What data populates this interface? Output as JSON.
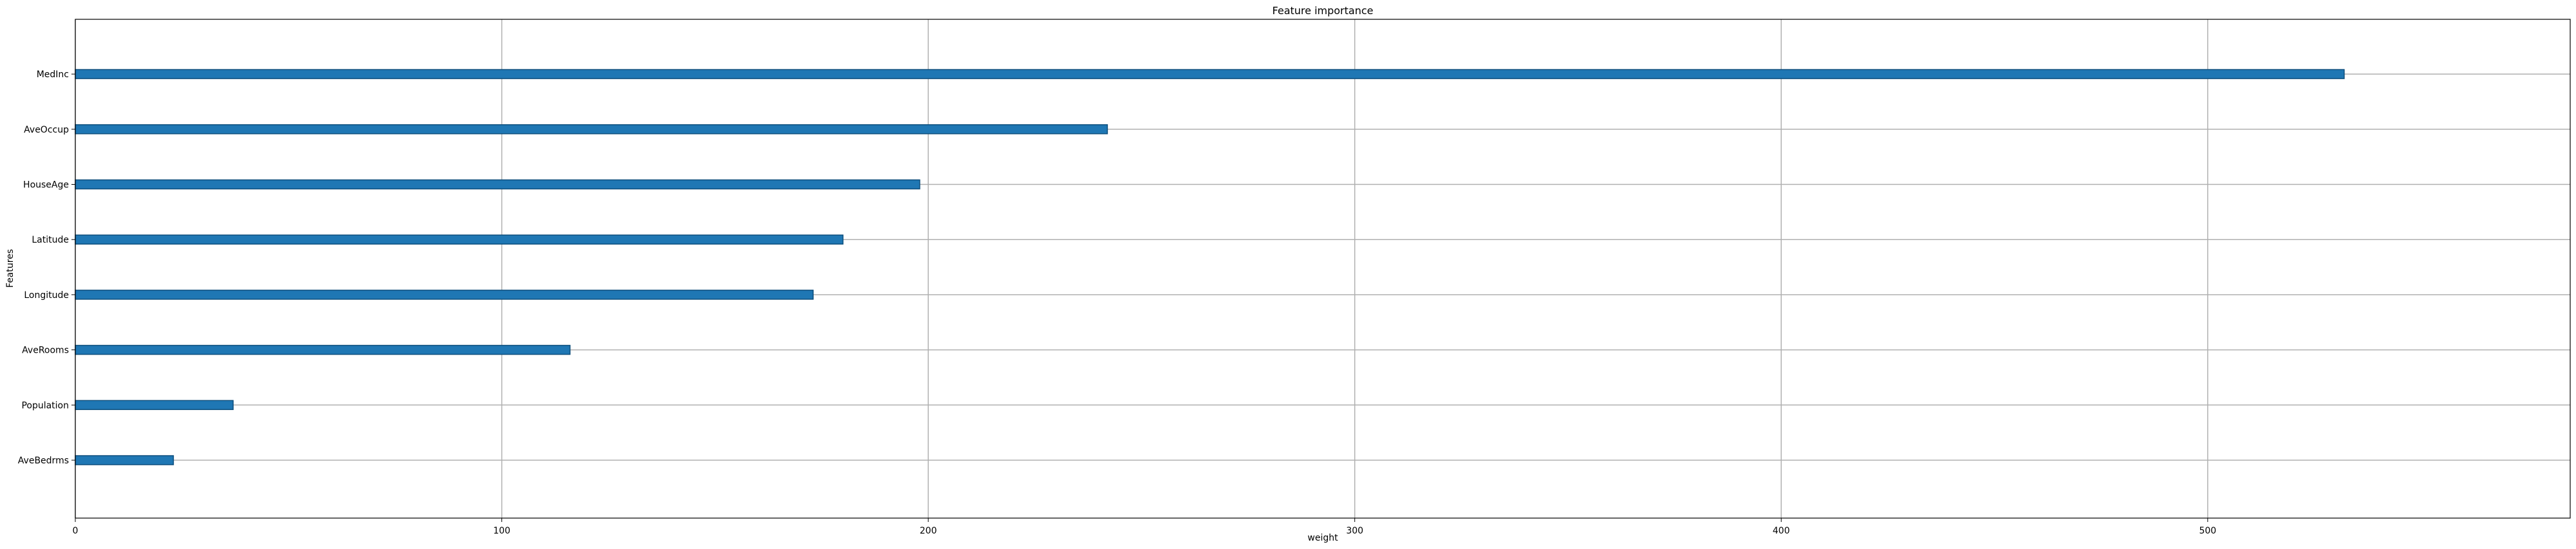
{
  "chart_data": {
    "type": "bar",
    "orientation": "horizontal",
    "title": "Feature importance",
    "xlabel": "weight",
    "ylabel": "Features",
    "categories": [
      "AveBedrms",
      "Population",
      "AveRooms",
      "Longitude",
      "Latitude",
      "HouseAge",
      "AveOccup",
      "MedInc"
    ],
    "values": [
      23,
      37,
      116,
      173,
      180,
      198,
      242,
      532
    ],
    "xlim": [
      0,
      585
    ],
    "xticks": [
      0,
      100,
      200,
      300,
      400,
      500
    ],
    "grid": true,
    "bar_color": "#1f77b4",
    "bar_edge_color": "#0e4f7d",
    "grid_color": "#b0b0b0"
  }
}
